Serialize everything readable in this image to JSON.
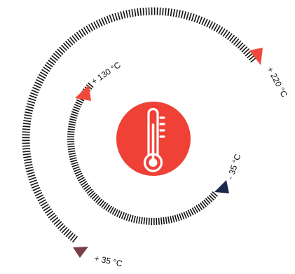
{
  "diagram": {
    "outer_arc": {
      "start_label": "+ 35 °C",
      "end_label": "+ 220 °C",
      "tick_color": "#111111",
      "start_arrow_color": "#7a4048",
      "end_arrow_color": "#f04a3c"
    },
    "inner_arc": {
      "start_label": "+ 130 °C",
      "end_label": "- 35 °C",
      "tick_color": "#111111",
      "start_arrow_color": "#f04a3c",
      "end_arrow_color": "#1b2a4a"
    },
    "center_icon": {
      "icon": "thermometer-icon",
      "circle_color": "#ef4136",
      "icon_color": "#ffffff"
    }
  }
}
